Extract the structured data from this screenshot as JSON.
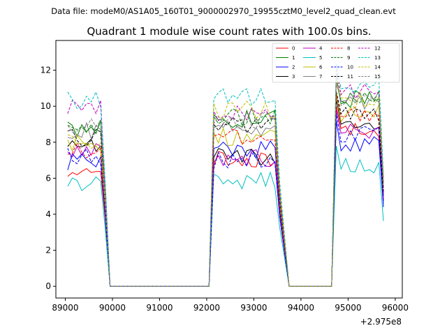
{
  "chart_data": {
    "type": "line",
    "suptitle": "Data file: modeM0/AS1A05_160T01_9000002970_19955cztM0_level2_quad_clean.evt",
    "title": "Quadrant 1 module wise count rates with 100.0s bins.",
    "xlim": [
      88800,
      96150
    ],
    "ylim": [
      -0.65,
      13.65
    ],
    "xticks": [
      89000,
      90000,
      91000,
      92000,
      93000,
      94000,
      95000,
      96000
    ],
    "xtick_labels": [
      "89000",
      "90000",
      "91000",
      "92000",
      "93000",
      "94000",
      "95000",
      "96000"
    ],
    "yticks": [
      0,
      2,
      4,
      6,
      8,
      10,
      12
    ],
    "ytick_labels": [
      "0",
      "2",
      "4",
      "6",
      "8",
      "10",
      "12"
    ],
    "x_offset_label": "+2.975e8",
    "segments": [
      {
        "x_start": 89050,
        "n": 9
      },
      {
        "x_start": 92150,
        "n": 15
      },
      {
        "x_start": 94750,
        "n": 11
      }
    ],
    "gap_points": [
      [
        89950,
        0
      ],
      [
        90050,
        0
      ],
      [
        92050,
        0
      ],
      [
        93750,
        0
      ],
      [
        93850,
        0
      ],
      [
        94650,
        0
      ]
    ],
    "series": [
      {
        "name": "0",
        "color": "#ff0000",
        "dash": false,
        "levels": [
          6.6,
          7.0,
          8.8
        ]
      },
      {
        "name": "1",
        "color": "#008000",
        "dash": false,
        "levels": [
          8.7,
          9.3,
          10.4
        ]
      },
      {
        "name": "2",
        "color": "#0000ff",
        "dash": false,
        "levels": [
          6.9,
          7.6,
          8.0
        ]
      },
      {
        "name": "3",
        "color": "#000000",
        "dash": false,
        "levels": [
          7.7,
          7.2,
          9.2
        ]
      },
      {
        "name": "4",
        "color": "#bf00bf",
        "dash": false,
        "levels": [
          7.6,
          7.1,
          8.6
        ]
      },
      {
        "name": "5",
        "color": "#00bfbf",
        "dash": false,
        "levels": [
          5.6,
          5.9,
          6.6
        ]
      },
      {
        "name": "6",
        "color": "#bfbf00",
        "dash": false,
        "levels": [
          8.0,
          8.3,
          9.6
        ]
      },
      {
        "name": "7",
        "color": "#808080",
        "dash": false,
        "levels": [
          8.6,
          8.8,
          10.1
        ]
      },
      {
        "name": "8",
        "color": "#ff0000",
        "dash": true,
        "levels": [
          7.5,
          8.3,
          9.5
        ]
      },
      {
        "name": "9",
        "color": "#008000",
        "dash": true,
        "levels": [
          8.9,
          9.4,
          10.6
        ]
      },
      {
        "name": "10",
        "color": "#0000ff",
        "dash": true,
        "levels": [
          7.2,
          7.0,
          8.4
        ]
      },
      {
        "name": "11",
        "color": "#000000",
        "dash": true,
        "levels": [
          8.3,
          8.9,
          9.6
        ]
      },
      {
        "name": "12",
        "color": "#bf00bf",
        "dash": true,
        "levels": [
          9.9,
          9.6,
          10.9
        ]
      },
      {
        "name": "13",
        "color": "#00bfbf",
        "dash": true,
        "levels": [
          10.3,
          10.5,
          11.2
        ]
      },
      {
        "name": "14",
        "color": "#bfbf00",
        "dash": true,
        "levels": [
          8.1,
          9.8,
          10.3
        ]
      },
      {
        "name": "15",
        "color": "#808080",
        "dash": true,
        "levels": [
          9.0,
          9.2,
          10.4
        ]
      }
    ]
  }
}
